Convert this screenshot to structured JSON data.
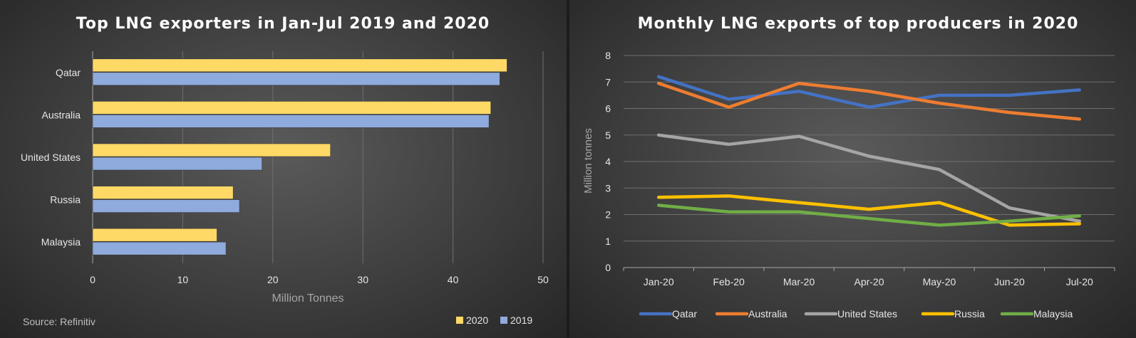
{
  "chart_data": [
    {
      "type": "bar",
      "orientation": "horizontal",
      "title": "Top LNG exporters in Jan-Jul 2019 and 2020",
      "xlabel": "Million Tonnes",
      "ylabel": "",
      "xlim": [
        0,
        50
      ],
      "xticks": [
        0,
        10,
        20,
        30,
        40,
        50
      ],
      "categories": [
        "Qatar",
        "Australia",
        "United States",
        "Russia",
        "Malaysia"
      ],
      "series": [
        {
          "name": "2020",
          "color": "#ffd966",
          "values": [
            46.0,
            44.2,
            26.4,
            15.6,
            13.8
          ]
        },
        {
          "name": "2019",
          "color": "#8faadc",
          "values": [
            45.2,
            44.0,
            18.8,
            16.3,
            14.8
          ]
        }
      ],
      "grid": "vertical",
      "legend": "bottom-right",
      "source": "Source: Refinitiv"
    },
    {
      "type": "line",
      "title": "Monthly LNG exports of top producers in 2020",
      "xlabel": "",
      "ylabel": "Million tonnes",
      "ylim": [
        0,
        8
      ],
      "yticks": [
        0,
        1,
        2,
        3,
        4,
        5,
        6,
        7,
        8
      ],
      "x": [
        "Jan-20",
        "Feb-20",
        "Mar-20",
        "Apr-20",
        "May-20",
        "Jun-20",
        "Jul-20"
      ],
      "series": [
        {
          "name": "Qatar",
          "color": "#4472c4",
          "values": [
            7.2,
            6.35,
            6.65,
            6.05,
            6.5,
            6.5,
            6.7
          ]
        },
        {
          "name": "Australia",
          "color": "#ed7d31",
          "values": [
            6.95,
            6.05,
            6.95,
            6.65,
            6.2,
            5.85,
            5.6
          ]
        },
        {
          "name": "United States",
          "color": "#a5a5a5",
          "values": [
            5.0,
            4.65,
            4.95,
            4.2,
            3.7,
            2.25,
            1.75
          ]
        },
        {
          "name": "Russia",
          "color": "#ffc000",
          "values": [
            2.65,
            2.7,
            2.45,
            2.2,
            2.45,
            1.6,
            1.65
          ]
        },
        {
          "name": "Malaysia",
          "color": "#70ad47",
          "values": [
            2.35,
            2.1,
            2.1,
            1.85,
            1.6,
            1.75,
            1.95
          ]
        }
      ],
      "grid": "horizontal",
      "legend": "bottom"
    }
  ]
}
